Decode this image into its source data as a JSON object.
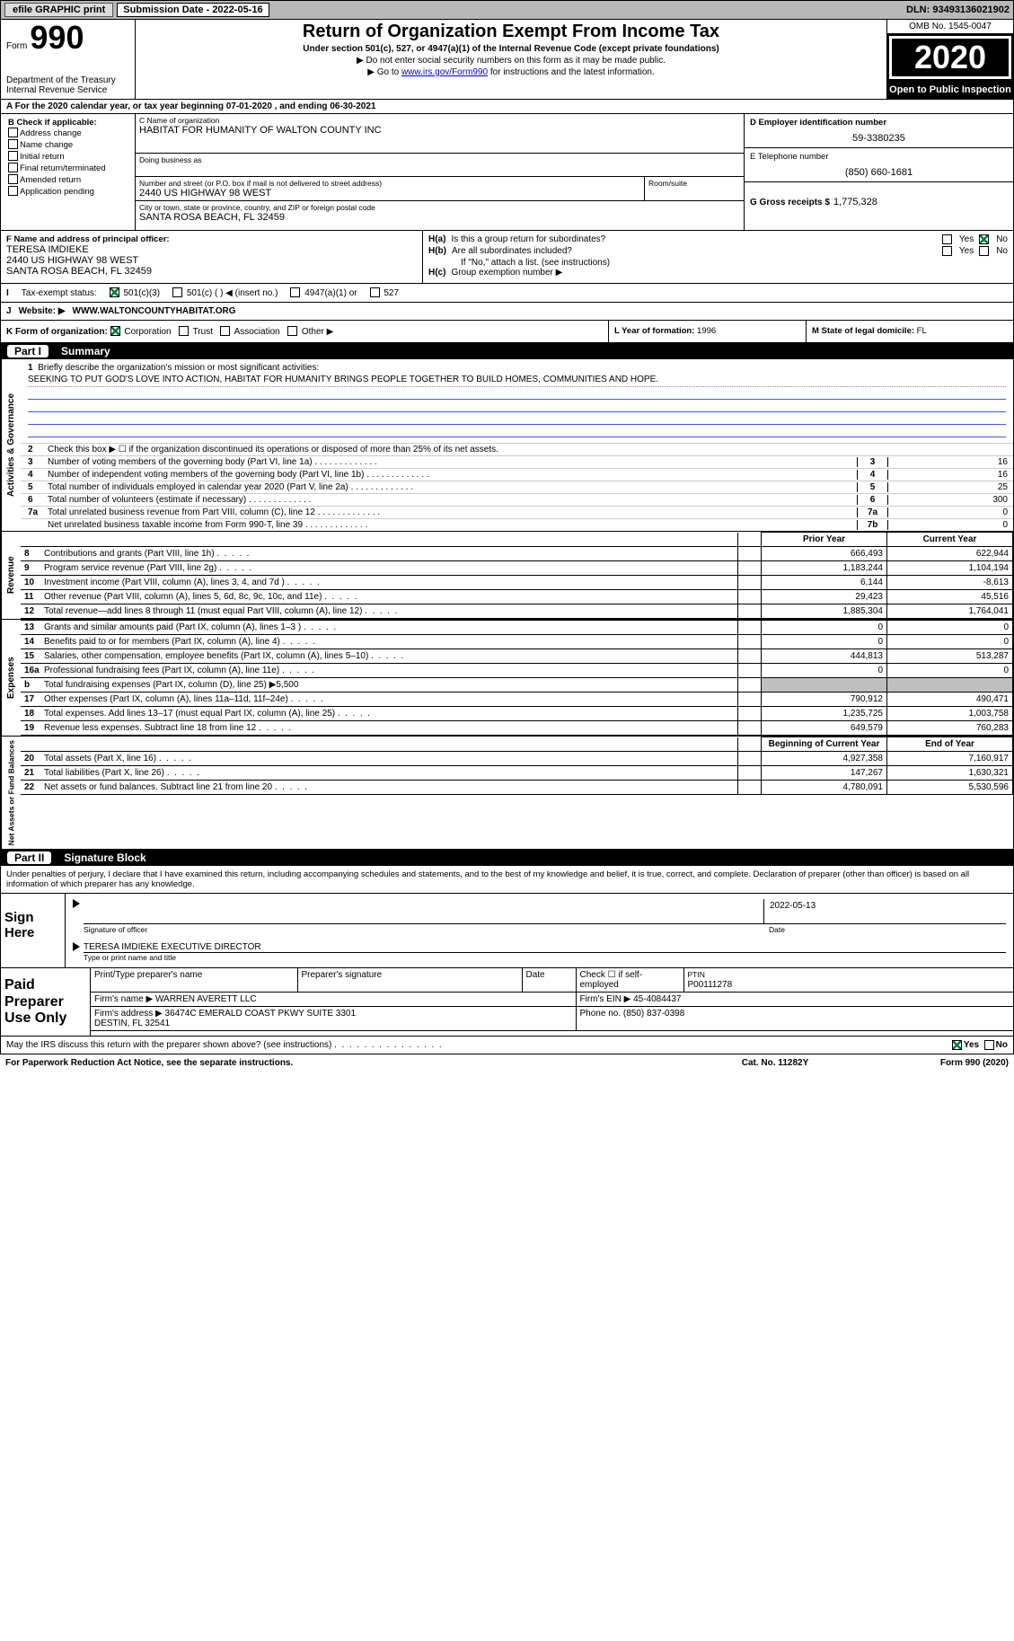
{
  "topbar": {
    "efile": "efile GRAPHIC print",
    "submission_label": "Submission Date - 2022-05-16",
    "dln": "DLN: 93493136021902"
  },
  "form_header": {
    "form_word": "Form",
    "form_number": "990",
    "dept": "Department of the Treasury\nInternal Revenue Service",
    "title": "Return of Organization Exempt From Income Tax",
    "subtitle": "Under section 501(c), 527, or 4947(a)(1) of the Internal Revenue Code (except private foundations)",
    "note1": "▶ Do not enter social security numbers on this form as it may be made public.",
    "note2_pre": "▶ Go to ",
    "note2_link": "www.irs.gov/Form990",
    "note2_post": " for instructions and the latest information.",
    "omb": "OMB No. 1545-0047",
    "year": "2020",
    "open": "Open to Public Inspection"
  },
  "tax_year_line": "A  For the 2020 calendar year, or tax year beginning 07-01-2020      , and ending 06-30-2021",
  "col_b": {
    "header": "B Check if applicable:",
    "opts": [
      "Address change",
      "Name change",
      "Initial return",
      "Final return/terminated",
      "Amended return",
      "Application pending"
    ]
  },
  "blocks": {
    "c_label": "C Name of organization",
    "c_name": "HABITAT FOR HUMANITY OF WALTON COUNTY INC",
    "dba_label": "Doing business as",
    "street_label": "Number and street (or P.O. box if mail is not delivered to street address)",
    "street": "2440 US HIGHWAY 98 WEST",
    "room_label": "Room/suite",
    "city_label": "City or town, state or province, country, and ZIP or foreign postal code",
    "city": "SANTA ROSA BEACH, FL  32459",
    "d_label": "D Employer identification number",
    "d_val": "59-3380235",
    "e_label": "E Telephone number",
    "e_val": "(850) 660-1681",
    "g_label": "G Gross receipts $",
    "g_val": "1,775,328"
  },
  "f": {
    "label": "F Name and address of principal officer:",
    "name": "TERESA IMDIEKE",
    "addr1": "2440 US HIGHWAY 98 WEST",
    "addr2": "SANTA ROSA BEACH, FL  32459"
  },
  "h": {
    "a_label": "Is this a group return for subordinates?",
    "a_prefix": "H(a)",
    "b_label": "Are all subordinates included?",
    "b_prefix": "H(b)",
    "b_note": "If \"No,\" attach a list. (see instructions)",
    "c_label": "Group exemption number ▶",
    "c_prefix": "H(c)",
    "yes": "Yes",
    "no": "No"
  },
  "tax_status": {
    "label": "Tax-exempt status:",
    "prefix": "I",
    "o1": "501(c)(3)",
    "o2": "501(c) (  ) ◀ (insert no.)",
    "o3": "4947(a)(1) or",
    "o4": "527"
  },
  "website": {
    "prefix": "J",
    "label": "Website: ▶",
    "val": "WWW.WALTONCOUNTYHABITAT.ORG"
  },
  "k": {
    "label": "K Form of organization:",
    "opts": [
      "Corporation",
      "Trust",
      "Association",
      "Other ▶"
    ]
  },
  "l": {
    "label": "L Year of formation:",
    "val": "1996"
  },
  "m": {
    "label": "M State of legal domicile:",
    "val": "FL"
  },
  "part1": {
    "num": "Part I",
    "title": "Summary"
  },
  "mission": {
    "intro": "Briefly describe the organization's mission or most significant activities:",
    "num": "1",
    "text": "SEEKING TO PUT GOD'S LOVE INTO ACTION, HABITAT FOR HUMANITY BRINGS PEOPLE TOGETHER TO BUILD HOMES, COMMUNITIES AND HOPE."
  },
  "governance_lines": [
    {
      "n": "2",
      "t": "Check this box ▶ ☐  if the organization discontinued its operations or disposed of more than 25% of its net assets."
    },
    {
      "n": "3",
      "t": "Number of voting members of the governing body (Part VI, line 1a)",
      "cn": "3",
      "cv": "16"
    },
    {
      "n": "4",
      "t": "Number of independent voting members of the governing body (Part VI, line 1b)",
      "cn": "4",
      "cv": "16"
    },
    {
      "n": "5",
      "t": "Total number of individuals employed in calendar year 2020 (Part V, line 2a)",
      "cn": "5",
      "cv": "25"
    },
    {
      "n": "6",
      "t": "Total number of volunteers (estimate if necessary)",
      "cn": "6",
      "cv": "300"
    },
    {
      "n": "7a",
      "t": "Total unrelated business revenue from Part VIII, column (C), line 12",
      "cn": "7a",
      "cv": "0"
    },
    {
      "n": "",
      "t": "Net unrelated business taxable income from Form 990-T, line 39",
      "cn": "7b",
      "cv": "0"
    }
  ],
  "two_col_head": {
    "prior": "Prior Year",
    "current": "Current Year"
  },
  "revenue": [
    {
      "n": "8",
      "t": "Contributions and grants (Part VIII, line 1h)",
      "p": "666,493",
      "c": "622,944"
    },
    {
      "n": "9",
      "t": "Program service revenue (Part VIII, line 2g)",
      "p": "1,183,244",
      "c": "1,104,194"
    },
    {
      "n": "10",
      "t": "Investment income (Part VIII, column (A), lines 3, 4, and 7d )",
      "p": "6,144",
      "c": "-8,613"
    },
    {
      "n": "11",
      "t": "Other revenue (Part VIII, column (A), lines 5, 6d, 8c, 9c, 10c, and 11e)",
      "p": "29,423",
      "c": "45,516"
    },
    {
      "n": "12",
      "t": "Total revenue—add lines 8 through 11 (must equal Part VIII, column (A), line 12)",
      "p": "1,885,304",
      "c": "1,764,041"
    }
  ],
  "expenses": [
    {
      "n": "13",
      "t": "Grants and similar amounts paid (Part IX, column (A), lines 1–3 )",
      "p": "0",
      "c": "0"
    },
    {
      "n": "14",
      "t": "Benefits paid to or for members (Part IX, column (A), line 4)",
      "p": "0",
      "c": "0"
    },
    {
      "n": "15",
      "t": "Salaries, other compensation, employee benefits (Part IX, column (A), lines 5–10)",
      "p": "444,813",
      "c": "513,287"
    },
    {
      "n": "16a",
      "t": "Professional fundraising fees (Part IX, column (A), line 11e)",
      "p": "0",
      "c": "0"
    },
    {
      "n": "b",
      "t": "Total fundraising expenses (Part IX, column (D), line 25) ▶5,500",
      "shade": true
    },
    {
      "n": "17",
      "t": "Other expenses (Part IX, column (A), lines 11a–11d, 11f–24e)",
      "p": "790,912",
      "c": "490,471"
    },
    {
      "n": "18",
      "t": "Total expenses. Add lines 13–17 (must equal Part IX, column (A), line 25)",
      "p": "1,235,725",
      "c": "1,003,758"
    },
    {
      "n": "19",
      "t": "Revenue less expenses. Subtract line 18 from line 12",
      "p": "649,579",
      "c": "760,283"
    }
  ],
  "net_head": {
    "begin": "Beginning of Current Year",
    "end": "End of Year"
  },
  "net": [
    {
      "n": "20",
      "t": "Total assets (Part X, line 16)",
      "p": "4,927,358",
      "c": "7,160,917"
    },
    {
      "n": "21",
      "t": "Total liabilities (Part X, line 26)",
      "p": "147,267",
      "c": "1,630,321"
    },
    {
      "n": "22",
      "t": "Net assets or fund balances. Subtract line 21 from line 20",
      "p": "4,780,091",
      "c": "5,530,596"
    }
  ],
  "part2": {
    "num": "Part II",
    "title": "Signature Block"
  },
  "penalty": "Under penalties of perjury, I declare that I have examined this return, including accompanying schedules and statements, and to the best of my knowledge and belief, it is true, correct, and complete. Declaration of preparer (other than officer) is based on all information of which preparer has any knowledge.",
  "sign": {
    "left": "Sign Here",
    "sig_label": "Signature of officer",
    "date_label": "Date",
    "date_val": "2022-05-13",
    "name_label": "Type or print name and title",
    "officer": "TERESA IMDIEKE  EXECUTIVE DIRECTOR"
  },
  "paid": {
    "left": "Paid Preparer Use Only",
    "h1": "Print/Type preparer's name",
    "h2": "Preparer's signature",
    "h3": "Date",
    "h4_pre": "Check ☐ if self-employed",
    "h5_label": "PTIN",
    "h5_val": "P00111278",
    "firm_label": "Firm's name    ▶",
    "firm": "WARREN AVERETT LLC",
    "firm_ein_label": "Firm's EIN ▶",
    "firm_ein": "45-4084437",
    "firm_addr_label": "Firm's address ▶",
    "firm_addr": "36474C EMERALD COAST PKWY SUITE 3301\nDESTIN, FL  32541",
    "phone_label": "Phone no.",
    "phone": "(850) 837-0398"
  },
  "discuss": {
    "text": "May the IRS discuss this return with the preparer shown above? (see instructions)",
    "yes": "Yes",
    "no": "No"
  },
  "footer": {
    "left": "For Paperwork Reduction Act Notice, see the separate instructions.",
    "mid": "Cat. No. 11282Y",
    "right": "Form 990 (2020)"
  },
  "side_tabs": {
    "gov": "Activities & Governance",
    "rev": "Revenue",
    "exp": "Expenses",
    "net": "Net Assets or Fund Balances"
  }
}
